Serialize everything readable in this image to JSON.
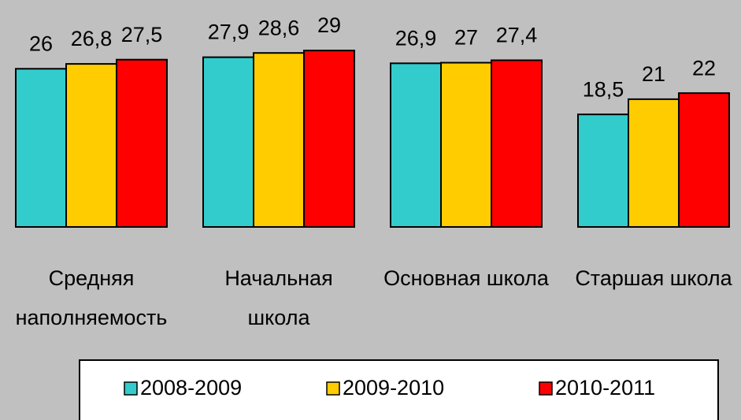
{
  "chart_data": {
    "type": "bar",
    "categories": [
      [
        "Средняя",
        "наполняемость"
      ],
      [
        "Начальная",
        "школа"
      ],
      [
        "Основная школа"
      ],
      [
        "Старшая школа"
      ]
    ],
    "series": [
      {
        "name": "2008-2009",
        "color": "#33cccc",
        "values": [
          26,
          27.9,
          26.9,
          18.5
        ],
        "value_labels": [
          "26",
          "27,9",
          "26,9",
          "18,5"
        ]
      },
      {
        "name": "2009-2010",
        "color": "#ffcc00",
        "values": [
          26.8,
          28.6,
          27,
          21
        ],
        "value_labels": [
          "26,8",
          "28,6",
          "27",
          "21"
        ]
      },
      {
        "name": "2010-2011",
        "color": "#ff0000",
        "values": [
          27.5,
          29,
          27.4,
          22
        ],
        "value_labels": [
          "27,5",
          "29",
          "27,4",
          "22"
        ]
      }
    ],
    "ylim": [
      0,
      30
    ],
    "legend": "bottom"
  }
}
